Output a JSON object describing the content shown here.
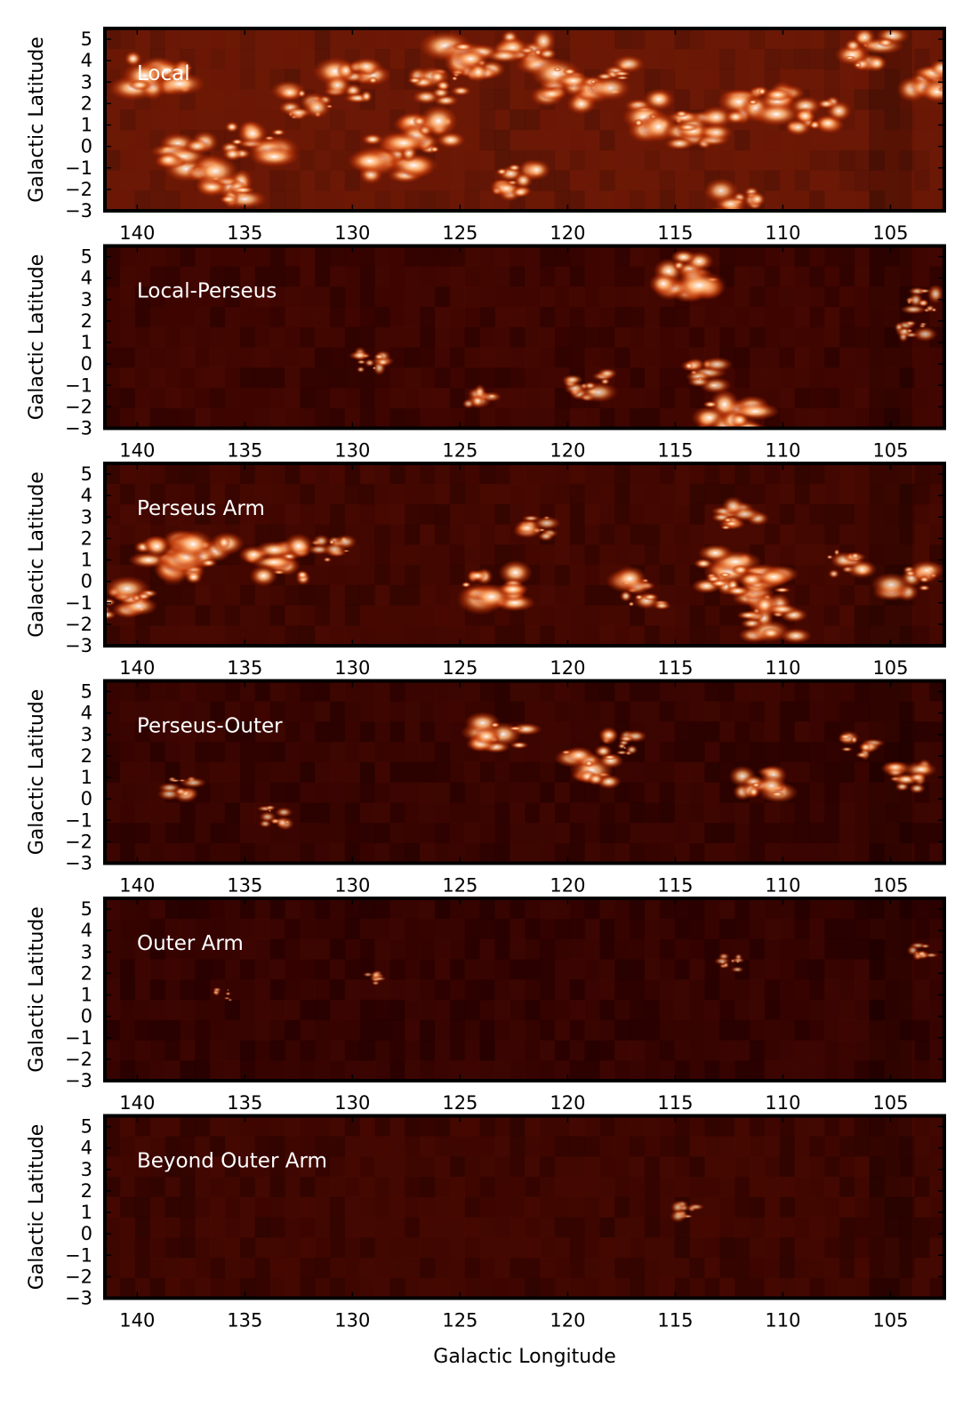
{
  "chart_data": {
    "type": "heatmap",
    "xlabel": "Galactic Longitude",
    "ylabel": "Galactic Latitude",
    "xlim": [
      141.5,
      102.5
    ],
    "ylim": [
      -3,
      5.5
    ],
    "x_ticks": [
      140,
      135,
      130,
      125,
      120,
      115,
      110,
      105
    ],
    "y_ticks": [
      5,
      4,
      3,
      2,
      1,
      0,
      -1,
      -2,
      -3
    ],
    "y_tick_labels": [
      "5",
      "4",
      "3",
      "2",
      "1",
      "0",
      "−1",
      "−2",
      "−3"
    ],
    "colormap": [
      "#2a0000",
      "#5a0c02",
      "#b83b0a",
      "#f0a050",
      "#ffffff"
    ],
    "panels": [
      {
        "title": "Local",
        "background": "#6a1806",
        "emission": [
          {
            "l": 139.0,
            "b": 3.5,
            "s": 1.0
          },
          {
            "l": 137.5,
            "b": -0.5,
            "s": 0.9
          },
          {
            "l": 136.0,
            "b": -1.8,
            "s": 0.9
          },
          {
            "l": 134.5,
            "b": 0.2,
            "s": 1.0
          },
          {
            "l": 132.0,
            "b": 2.0,
            "s": 0.8
          },
          {
            "l": 130.0,
            "b": 3.0,
            "s": 0.9
          },
          {
            "l": 128.0,
            "b": -0.5,
            "s": 1.0
          },
          {
            "l": 126.5,
            "b": 0.5,
            "s": 1.0
          },
          {
            "l": 126.0,
            "b": 2.8,
            "s": 0.9
          },
          {
            "l": 124.5,
            "b": 4.0,
            "s": 1.0
          },
          {
            "l": 122.0,
            "b": 4.5,
            "s": 0.9
          },
          {
            "l": 122.5,
            "b": -1.5,
            "s": 0.9
          },
          {
            "l": 120.0,
            "b": 2.8,
            "s": 1.0
          },
          {
            "l": 118.0,
            "b": 3.2,
            "s": 0.8
          },
          {
            "l": 116.0,
            "b": 1.5,
            "s": 1.0
          },
          {
            "l": 114.0,
            "b": 0.8,
            "s": 0.9
          },
          {
            "l": 111.0,
            "b": 2.2,
            "s": 1.0
          },
          {
            "l": 108.5,
            "b": 1.5,
            "s": 0.9
          },
          {
            "l": 112.0,
            "b": -2.5,
            "s": 0.8
          },
          {
            "l": 106.0,
            "b": 4.5,
            "s": 0.9
          },
          {
            "l": 103.0,
            "b": 3.0,
            "s": 0.9
          }
        ]
      },
      {
        "title": "Local-Perseus",
        "background": "#3a0400",
        "emission": [
          {
            "l": 114.5,
            "b": 4.2,
            "s": 1.0
          },
          {
            "l": 112.5,
            "b": -2.6,
            "s": 1.0
          },
          {
            "l": 113.5,
            "b": -0.5,
            "s": 0.7
          },
          {
            "l": 119.0,
            "b": -1.0,
            "s": 0.7
          },
          {
            "l": 129.0,
            "b": 0.0,
            "s": 0.6
          },
          {
            "l": 124.0,
            "b": -1.5,
            "s": 0.5
          },
          {
            "l": 104.0,
            "b": 1.5,
            "s": 0.5
          },
          {
            "l": 103.5,
            "b": 3.0,
            "s": 0.6
          }
        ]
      },
      {
        "title": "Perseus Arm",
        "background": "#3e0600",
        "emission": [
          {
            "l": 140.5,
            "b": -1.0,
            "s": 0.9
          },
          {
            "l": 138.5,
            "b": 1.0,
            "s": 1.0
          },
          {
            "l": 137.0,
            "b": 1.3,
            "s": 1.0
          },
          {
            "l": 133.5,
            "b": 0.9,
            "s": 1.0
          },
          {
            "l": 131.0,
            "b": 1.5,
            "s": 0.6
          },
          {
            "l": 123.5,
            "b": -0.3,
            "s": 1.0
          },
          {
            "l": 121.5,
            "b": 2.5,
            "s": 0.6
          },
          {
            "l": 116.5,
            "b": -0.5,
            "s": 0.8
          },
          {
            "l": 112.5,
            "b": 0.5,
            "s": 1.0
          },
          {
            "l": 111.0,
            "b": 0.0,
            "s": 1.0
          },
          {
            "l": 110.5,
            "b": -1.8,
            "s": 0.9
          },
          {
            "l": 112.0,
            "b": 3.0,
            "s": 0.7
          },
          {
            "l": 107.0,
            "b": 0.8,
            "s": 0.7
          },
          {
            "l": 104.0,
            "b": 0.0,
            "s": 0.8
          }
        ]
      },
      {
        "title": "Perseus-Outer",
        "background": "#330300",
        "emission": [
          {
            "l": 123.0,
            "b": 3.0,
            "s": 0.9
          },
          {
            "l": 119.0,
            "b": 1.5,
            "s": 0.9
          },
          {
            "l": 117.5,
            "b": 2.5,
            "s": 0.6
          },
          {
            "l": 111.0,
            "b": 0.8,
            "s": 0.8
          },
          {
            "l": 106.5,
            "b": 2.5,
            "s": 0.6
          },
          {
            "l": 104.0,
            "b": 1.0,
            "s": 0.7
          },
          {
            "l": 138.0,
            "b": 0.5,
            "s": 0.5
          },
          {
            "l": 133.5,
            "b": -0.8,
            "s": 0.5
          }
        ]
      },
      {
        "title": "Outer Arm",
        "background": "#300200",
        "emission": [
          {
            "l": 112.5,
            "b": 2.5,
            "s": 0.4
          },
          {
            "l": 103.5,
            "b": 3.0,
            "s": 0.4
          },
          {
            "l": 129.0,
            "b": 1.8,
            "s": 0.3
          },
          {
            "l": 136.0,
            "b": 1.0,
            "s": 0.3
          }
        ]
      },
      {
        "title": "Beyond Outer Arm",
        "background": "#3a0500",
        "emission": [
          {
            "l": 114.5,
            "b": 1.1,
            "s": 0.4
          }
        ]
      }
    ]
  }
}
